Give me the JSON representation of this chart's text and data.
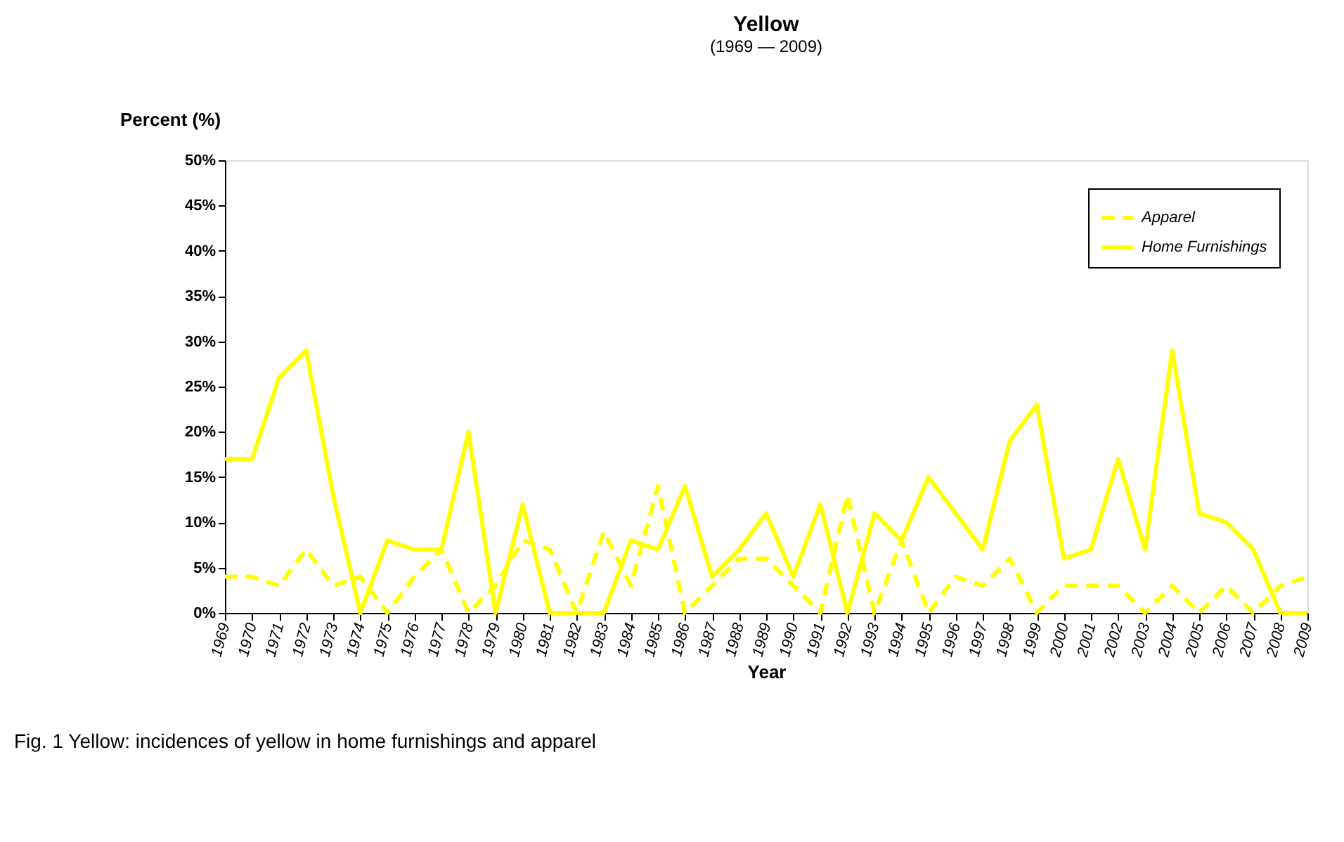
{
  "chart_data": {
    "type": "line",
    "title": "Yellow",
    "subtitle": "(1969 — 2009)",
    "xlabel": "Year",
    "ylabel": "Percent (%)",
    "categories": [
      "1969",
      "1970",
      "1971",
      "1972",
      "1973",
      "1974",
      "1975",
      "1976",
      "1977",
      "1978",
      "1979",
      "1980",
      "1981",
      "1982",
      "1983",
      "1984",
      "1985",
      "1986",
      "1987",
      "1988",
      "1989",
      "1990",
      "1991",
      "1992",
      "1993",
      "1994",
      "1995",
      "1996",
      "1997",
      "1998",
      "1999",
      "2000",
      "2001",
      "2002",
      "2003",
      "2004",
      "2005",
      "2006",
      "2007",
      "2008",
      "2009"
    ],
    "series": [
      {
        "name": "Apparel",
        "color": "#ffff00",
        "line_style": "dashed",
        "values": [
          4,
          4,
          3,
          7,
          3,
          4,
          0,
          4,
          7,
          0,
          3,
          8,
          7,
          0,
          9,
          3,
          14,
          0,
          3,
          6,
          6,
          3,
          0,
          13,
          0,
          8,
          0,
          4,
          3,
          6,
          0,
          3,
          3,
          3,
          0,
          3,
          0,
          3,
          0,
          3,
          4
        ]
      },
      {
        "name": "Home Furnishings",
        "color": "#ffff00",
        "line_style": "solid",
        "values": [
          17,
          17,
          26,
          29,
          13,
          0,
          8,
          7,
          7,
          20,
          0,
          12,
          0,
          0,
          0,
          8,
          7,
          14,
          4,
          7,
          11,
          4,
          12,
          0,
          11,
          8,
          15,
          11,
          7,
          19,
          23,
          6,
          7,
          17,
          7,
          29,
          11,
          10,
          7,
          0,
          0
        ]
      }
    ],
    "ylim": [
      0,
      50
    ],
    "yticks": [
      {
        "value": 0,
        "label": "0%"
      },
      {
        "value": 5,
        "label": "5%"
      },
      {
        "value": 10,
        "label": "10%"
      },
      {
        "value": 15,
        "label": "15%"
      },
      {
        "value": 20,
        "label": "20%"
      },
      {
        "value": 25,
        "label": "25%"
      },
      {
        "value": 30,
        "label": "30%"
      },
      {
        "value": 35,
        "label": "35%"
      },
      {
        "value": 40,
        "label": "40%"
      },
      {
        "value": 45,
        "label": "45%"
      },
      {
        "value": 50,
        "label": "50%"
      }
    ],
    "grid": false,
    "legend": "top right",
    "annotations": [
      "Fig. 1 Yellow: incidences of yellow in home furnishings and apparel"
    ]
  }
}
